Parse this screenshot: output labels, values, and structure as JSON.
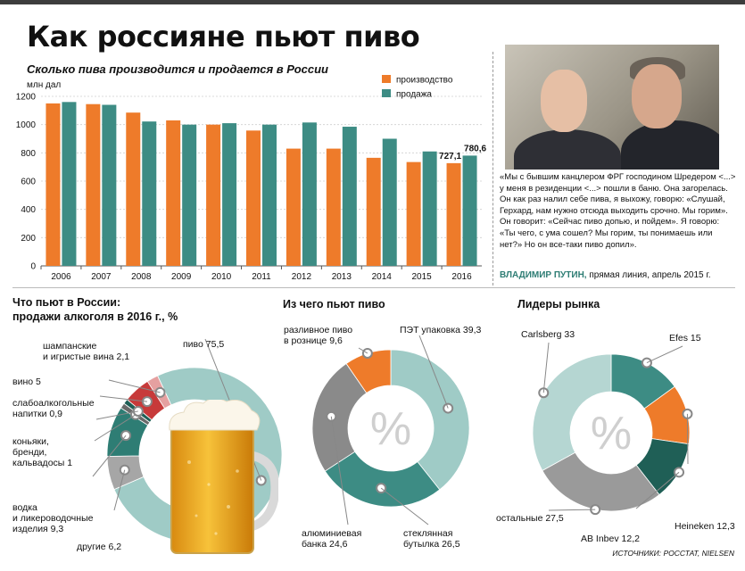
{
  "title": "Как россияне пьют пиво",
  "bar_section": {
    "subtitle": "Сколько пива производится и продается в России",
    "unit": "млн дал"
  },
  "chart_data": [
    {
      "type": "bar",
      "title": "Сколько пива производится и продается в России",
      "ylabel": "млн дал",
      "ylim": [
        0,
        1200
      ],
      "yticks": [
        0,
        200,
        400,
        600,
        800,
        1000,
        1200
      ],
      "grid": true,
      "legend_position": "top-right",
      "categories": [
        "2006",
        "2007",
        "2008",
        "2009",
        "2010",
        "2011",
        "2012",
        "2013",
        "2014",
        "2015",
        "2016"
      ],
      "series": [
        {
          "name": "производство",
          "color": "#ee7b2a",
          "values": [
            1150,
            1145,
            1085,
            1030,
            1000,
            958,
            830,
            830,
            765,
            735,
            727.1
          ]
        },
        {
          "name": "продажа",
          "color": "#3d8c84",
          "values": [
            1160,
            1140,
            1022,
            1000,
            1010,
            1000,
            1015,
            985,
            900,
            810,
            780.6
          ]
        }
      ],
      "data_labels": [
        {
          "category": "2016",
          "series": "производство",
          "text": "727,1"
        },
        {
          "category": "2016",
          "series": "продажа",
          "text": "780,6"
        }
      ]
    },
    {
      "type": "pie",
      "title": "Что пьют в России: продажи алкоголя в 2016 г., %",
      "slices": [
        {
          "label": "пиво",
          "value": 75.5,
          "color": "#9fcbc6"
        },
        {
          "label": "другие",
          "value": 6.2,
          "color": "#a6a6a6"
        },
        {
          "label": "водка и ликероводочные изделия",
          "value": 9.3,
          "color": "#2e7d74"
        },
        {
          "label": "коньяки, бренди, кальвадосы",
          "value": 1,
          "color": "#6a6a6a"
        },
        {
          "label": "слабоалкогольные напитки",
          "value": 0.9,
          "color": "#1f5f56"
        },
        {
          "label": "вино",
          "value": 5,
          "color": "#c73a3a"
        },
        {
          "label": "шампанские и игристые вина",
          "value": 2.1,
          "color": "#e5a0a0"
        }
      ]
    },
    {
      "type": "pie",
      "title": "Из чего пьют пиво",
      "slices": [
        {
          "label": "ПЭТ упаковка",
          "value": 39.3,
          "color": "#9fcbc6"
        },
        {
          "label": "стеклянная бутылка",
          "value": 26.5,
          "color": "#3d8c84"
        },
        {
          "label": "алюминиевая банка",
          "value": 24.6,
          "color": "#8a8a8a"
        },
        {
          "label": "разливное пиво в рознице",
          "value": 9.6,
          "color": "#ee7b2a"
        }
      ]
    },
    {
      "type": "pie",
      "title": "Лидеры рынка",
      "slices": [
        {
          "label": "Efes",
          "value": 15,
          "color": "#3d8c84"
        },
        {
          "label": "Heineken",
          "value": 12.3,
          "color": "#ee7b2a"
        },
        {
          "label": "AB Inbev",
          "value": 12.2,
          "color": "#1f5f56"
        },
        {
          "label": "остальные",
          "value": 27.5,
          "color": "#9a9a9a"
        },
        {
          "label": "Carlsberg",
          "value": 33,
          "color": "#b5d6d2"
        }
      ]
    }
  ],
  "legend": {
    "production": "производство",
    "sales": "продажа"
  },
  "quote": {
    "text": "«Мы с бывшим канцлером ФРГ господином Шредером <...> у меня в резиденции <...> пошли в баню. Она загорелась. Он как раз налил себе пива, я выхожу, говорю: «Слушай, Герхард, нам нужно отсюда выходить срочно. Мы горим». Он говорит: «Сейчас пиво допью, и пойдем». Я говорю: «Ты чего, с ума сошел? Мы горим, ты понимаешь или нет?» Но он все-таки пиво допил».",
    "author": "ВЛАДИМИР ПУТИН,",
    "source": " прямая линия, апрель 2015 г."
  },
  "alcohol": {
    "title_line1": "Что пьют в России:",
    "title_line2": "продажи алкоголя в 2016 г., %",
    "labels": {
      "champagne": "шампанские\nи игристые вина 2,1",
      "wine": "вино 5",
      "low_alcohol": "слабоалкогольные\nнапитки 0,9",
      "cognac": "коньяки,\nбренди,\nкальвадосы 1",
      "vodka": "водка\nи ликероводочные\nизделия 9,3",
      "other": "другие 6,2",
      "beer": "пиво 75,5"
    }
  },
  "packaging": {
    "title": "Из чего пьют пиво",
    "center": "%",
    "labels": {
      "draft": "разливное пиво\nв рознице 9,6",
      "pet": "ПЭТ упаковка 39,3",
      "glass": "стеклянная\nбутылка 26,5",
      "can": "алюминиевая\nбанка 24,6"
    }
  },
  "leaders": {
    "title": "Лидеры рынка",
    "center": "%",
    "labels": {
      "carlsberg": "Carlsberg 33",
      "efes": "Efes 15",
      "heineken": "Heineken 12,3",
      "abinbev": "AB Inbev 12,2",
      "others": "остальные 27,5"
    }
  },
  "source": "ИСТОЧНИКИ: РОССТАТ, NIELSEN"
}
